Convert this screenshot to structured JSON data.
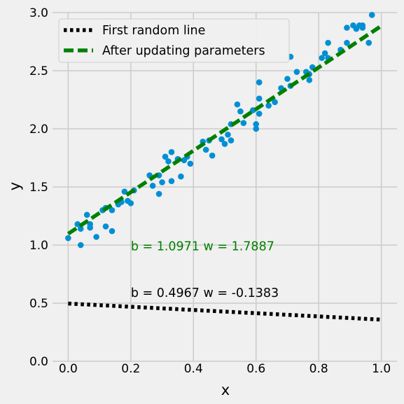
{
  "chart_data": {
    "type": "scatter",
    "xlabel": "x",
    "ylabel": "y",
    "xlim": [
      -0.05,
      1.05
    ],
    "ylim": [
      0.0,
      3.0
    ],
    "x_ticks": [
      0.0,
      0.2,
      0.4,
      0.6,
      0.8,
      1.0
    ],
    "x_tick_labels": [
      "0.0",
      "0.2",
      "0.4",
      "0.6",
      "0.8",
      "1.0"
    ],
    "y_ticks": [
      0.0,
      0.5,
      1.0,
      1.5,
      2.0,
      2.5,
      3.0
    ],
    "y_tick_labels": [
      "0.0",
      "0.5",
      "1.0",
      "1.5",
      "2.0",
      "2.5",
      "3.0"
    ],
    "grid": true,
    "legend_position": "top-left",
    "scatter_color": "#008fd5",
    "points": [
      [
        0.0,
        1.06
      ],
      [
        0.03,
        1.18
      ],
      [
        0.04,
        1.0
      ],
      [
        0.04,
        1.14
      ],
      [
        0.06,
        1.26
      ],
      [
        0.07,
        1.15
      ],
      [
        0.07,
        1.18
      ],
      [
        0.09,
        1.07
      ],
      [
        0.11,
        1.3
      ],
      [
        0.12,
        1.16
      ],
      [
        0.12,
        1.32
      ],
      [
        0.14,
        1.12
      ],
      [
        0.14,
        1.3
      ],
      [
        0.16,
        1.35
      ],
      [
        0.17,
        1.37
      ],
      [
        0.18,
        1.46
      ],
      [
        0.19,
        1.38
      ],
      [
        0.2,
        1.36
      ],
      [
        0.21,
        1.47
      ],
      [
        0.26,
        1.6
      ],
      [
        0.27,
        1.51
      ],
      [
        0.29,
        1.44
      ],
      [
        0.29,
        1.6
      ],
      [
        0.3,
        1.54
      ],
      [
        0.31,
        1.76
      ],
      [
        0.32,
        1.72
      ],
      [
        0.33,
        1.8
      ],
      [
        0.33,
        1.55
      ],
      [
        0.35,
        1.74
      ],
      [
        0.36,
        1.59
      ],
      [
        0.37,
        1.73
      ],
      [
        0.38,
        1.76
      ],
      [
        0.39,
        1.7
      ],
      [
        0.43,
        1.89
      ],
      [
        0.44,
        1.82
      ],
      [
        0.45,
        1.9
      ],
      [
        0.46,
        1.77
      ],
      [
        0.49,
        1.91
      ],
      [
        0.5,
        1.87
      ],
      [
        0.51,
        1.95
      ],
      [
        0.52,
        1.9
      ],
      [
        0.52,
        2.04
      ],
      [
        0.54,
        2.21
      ],
      [
        0.55,
        2.15
      ],
      [
        0.56,
        2.05
      ],
      [
        0.59,
        2.16
      ],
      [
        0.6,
        2.0
      ],
      [
        0.6,
        2.04
      ],
      [
        0.61,
        2.13
      ],
      [
        0.61,
        2.26
      ],
      [
        0.61,
        2.4
      ],
      [
        0.64,
        2.2
      ],
      [
        0.66,
        2.23
      ],
      [
        0.68,
        2.35
      ],
      [
        0.7,
        2.43
      ],
      [
        0.71,
        2.37
      ],
      [
        0.71,
        2.62
      ],
      [
        0.73,
        2.49
      ],
      [
        0.76,
        2.49
      ],
      [
        0.77,
        2.42
      ],
      [
        0.77,
        2.47
      ],
      [
        0.78,
        2.53
      ],
      [
        0.81,
        2.61
      ],
      [
        0.82,
        2.65
      ],
      [
        0.83,
        2.74
      ],
      [
        0.83,
        2.61
      ],
      [
        0.87,
        2.68
      ],
      [
        0.89,
        2.87
      ],
      [
        0.89,
        2.74
      ],
      [
        0.91,
        2.89
      ],
      [
        0.92,
        2.86
      ],
      [
        0.93,
        2.89
      ],
      [
        0.94,
        2.87
      ],
      [
        0.94,
        2.89
      ],
      [
        0.96,
        2.74
      ],
      [
        0.97,
        2.98
      ]
    ],
    "series": [
      {
        "name": "First random line",
        "b": 0.4967,
        "w": -0.1383,
        "x": [
          0.0,
          1.0
        ],
        "y": [
          0.4967,
          0.3584
        ],
        "color": "#000000",
        "style": "dotted"
      },
      {
        "name": "After updating parameters",
        "b": 1.0971,
        "w": 1.7887,
        "x": [
          0.0,
          1.0
        ],
        "y": [
          1.0971,
          2.8858
        ],
        "color": "#008000",
        "style": "dashed"
      }
    ],
    "annotations": [
      {
        "text": "b = 1.0971 w = 1.7887",
        "x": 0.2,
        "y": 0.955,
        "color": "#008000"
      },
      {
        "text": "b = 0.4967 w = -0.1383",
        "x": 0.2,
        "y": 0.555,
        "color": "#000000"
      }
    ]
  }
}
